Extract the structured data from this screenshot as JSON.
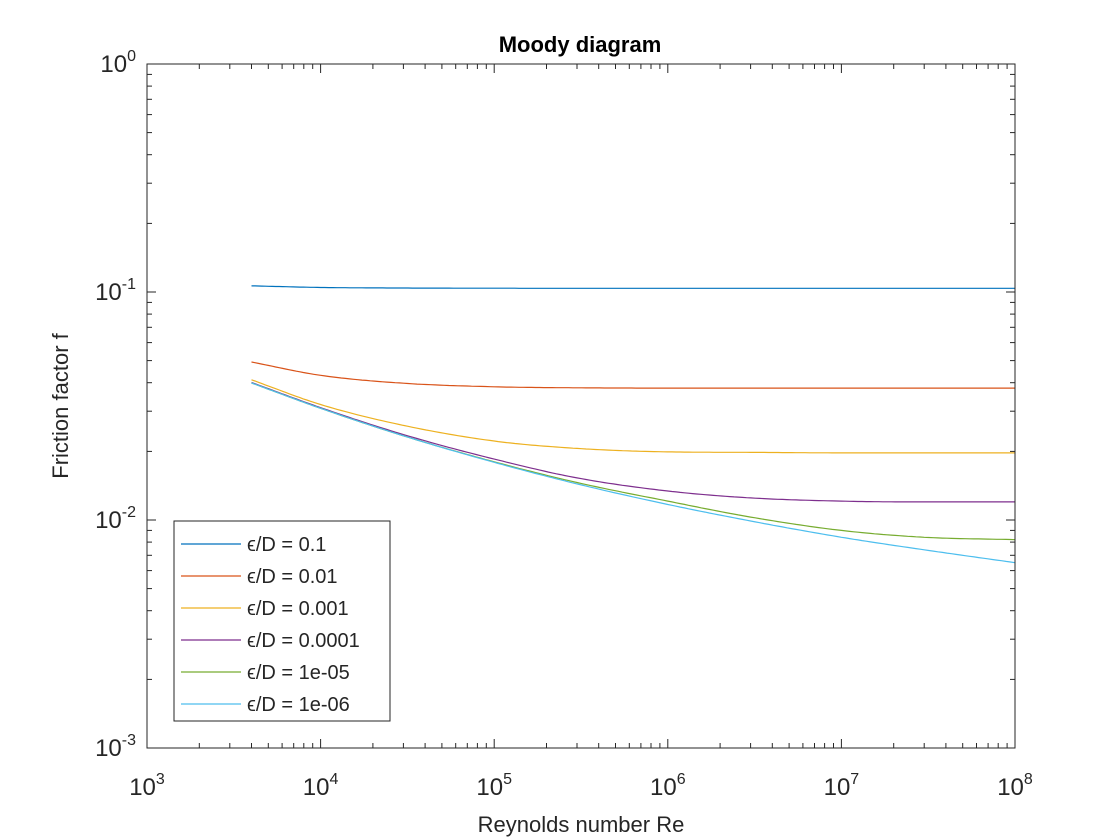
{
  "chart_data": {
    "type": "line",
    "title": "Moody diagram",
    "xlabel": "Reynolds number Re",
    "ylabel": "Friction factor f",
    "xscale": "log",
    "yscale": "log",
    "xlim": [
      1000,
      100000000
    ],
    "ylim": [
      0.001,
      1
    ],
    "x_ticks": [
      {
        "base": "10",
        "exp": "3"
      },
      {
        "base": "10",
        "exp": "4"
      },
      {
        "base": "10",
        "exp": "5"
      },
      {
        "base": "10",
        "exp": "6"
      },
      {
        "base": "10",
        "exp": "7"
      },
      {
        "base": "10",
        "exp": "8"
      }
    ],
    "y_ticks": [
      {
        "base": "10",
        "exp": "-3"
      },
      {
        "base": "10",
        "exp": "-2"
      },
      {
        "base": "10",
        "exp": "-1"
      },
      {
        "base": "10",
        "exp": "0"
      }
    ],
    "grid": false,
    "legend_position": "bottom-left",
    "x": [
      4000,
      10000,
      30000,
      100000,
      300000,
      1000000,
      3000000,
      10000000,
      30000000,
      100000000
    ],
    "series": [
      {
        "name": "ϵ/D = 0.1",
        "color": "#0072BD",
        "values": [
          0.1064,
          0.1047,
          0.1041,
          0.1039,
          0.1038,
          0.1038,
          0.1038,
          0.1038,
          0.1038,
          0.1038
        ]
      },
      {
        "name": "ϵ/D = 0.01",
        "color": "#D95319",
        "values": [
          0.0493,
          0.0431,
          0.0398,
          0.0384,
          0.038,
          0.0379,
          0.0379,
          0.0379,
          0.0379,
          0.0379
        ]
      },
      {
        "name": "ϵ/D = 0.001",
        "color": "#EDB120",
        "values": [
          0.0412,
          0.0321,
          0.026,
          0.0222,
          0.0206,
          0.0199,
          0.0198,
          0.0197,
          0.0197,
          0.0197
        ]
      },
      {
        "name": "ϵ/D = 0.0001",
        "color": "#7E2F8E",
        "values": [
          0.0401,
          0.0311,
          0.0237,
          0.0185,
          0.0153,
          0.0134,
          0.0125,
          0.0121,
          0.012,
          0.012
        ]
      },
      {
        "name": "ϵ/D = 1e-05",
        "color": "#77AC30",
        "values": [
          0.0399,
          0.0309,
          0.0234,
          0.018,
          0.0146,
          0.0121,
          0.0103,
          0.009,
          0.0084,
          0.0082
        ]
      },
      {
        "name": "ϵ/D = 1e-06",
        "color": "#4DBEEE",
        "values": [
          0.0399,
          0.0309,
          0.0234,
          0.0179,
          0.0144,
          0.0117,
          0.0099,
          0.0084,
          0.0074,
          0.0065
        ]
      }
    ]
  }
}
